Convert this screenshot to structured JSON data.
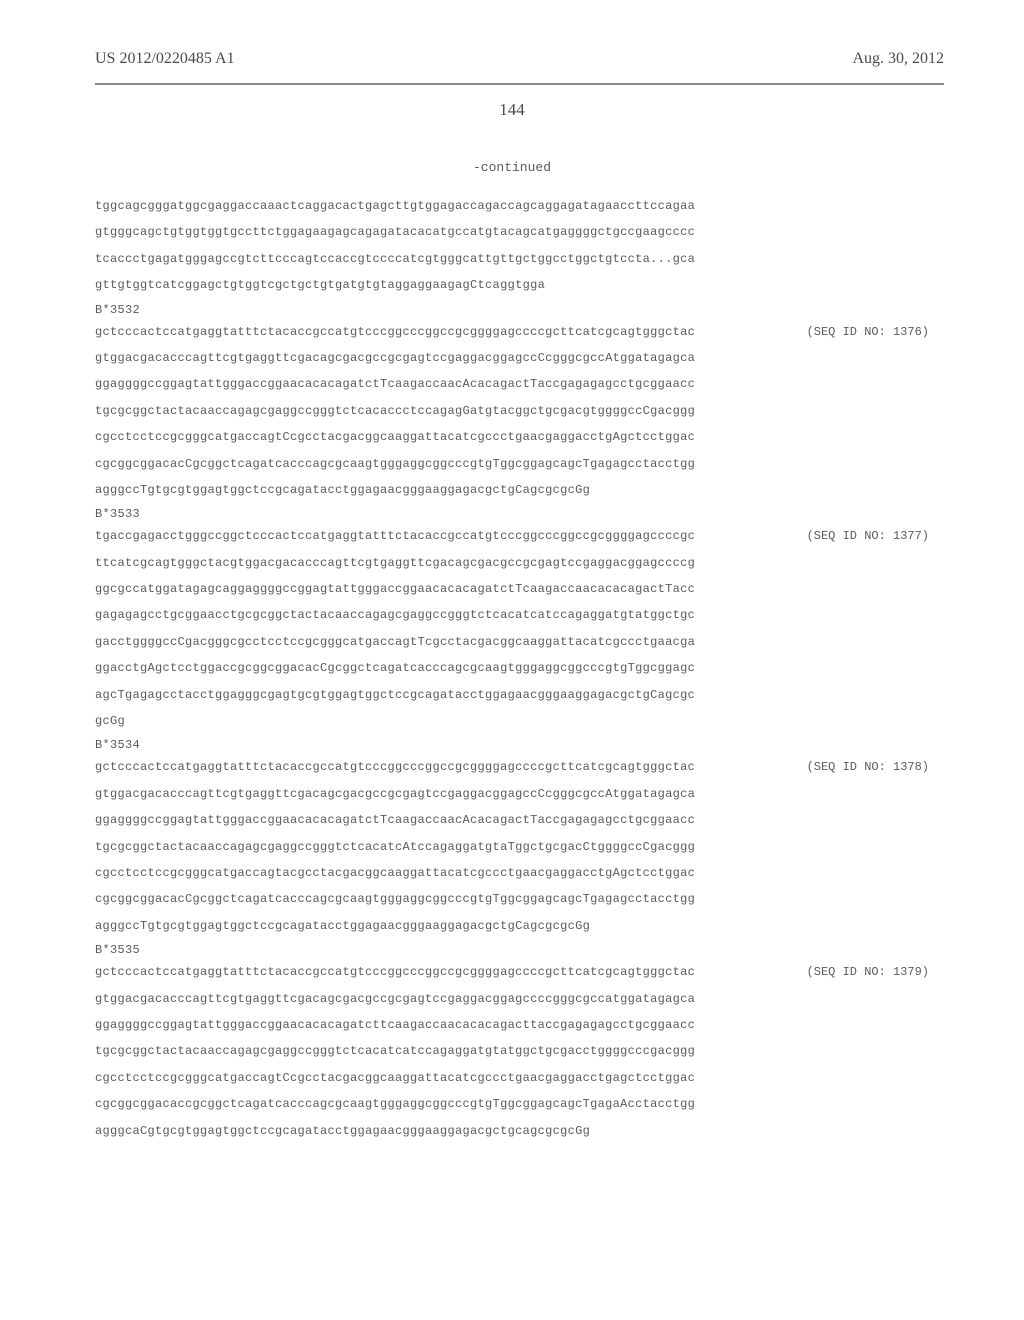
{
  "header": {
    "doc_number": "US 2012/0220485 A1",
    "date": "Aug. 30, 2012"
  },
  "page_number": "144",
  "continued_label": "-continued",
  "sequences": [
    {
      "lines": [
        "tggcagcgggatggcgaggaccaaactcaggacactgagcttgtggagaccagaccagcaggagatagaaccttccagaa",
        "gtgggcagctgtggtggtgccttctggagaagagcagagatacacatgccatgtacagcatgaggggctgccgaagcccc",
        "tcaccctgagatgggagccgtcttcccagtccaccgtccccatcgtgggcattgttgctggcctggctgtccta...gca",
        "gttgtggtcatcggagctgtggtcgctgctgtgatgtgtaggaggaagagCtcaggtgga"
      ]
    },
    {
      "allele": "B*3532",
      "seq_id": "(SEQ ID NO: 1376)",
      "lines": [
        "gctcccactccatgaggtatttctacaccgccatgtcccggcccggccgcggggagccccgcttcatcgcagtgggctac",
        "gtggacgacacccagttcgtgaggttcgacagcgacgccgcgagtccgaggacggagccCcgggcgccAtggatagagca",
        "ggaggggccggagtattgggaccggaacacacagatctTcaagaccaacAcacagactTaccgagagagcctgcggaacc",
        "tgcgcggctactacaaccagagcgaggccgggtctcacaccctccagagGatgtacggctgcgacgtggggccCgacggg",
        "cgcctcctccgcgggcatgaccagtCcgcctacgacggcaaggattacatcgccctgaacgaggacctgAgctcctggac",
        "cgcggcggacacCgcggctcagatcacccagcgcaagtgggaggcggcccgtgTggcggagcagcTgagagcctacctgg",
        "agggccTgtgcgtggagtggctccgcagatacctggagaacgggaaggagacgctgCagcgcgcGg"
      ]
    },
    {
      "allele": "B*3533",
      "seq_id": "(SEQ ID NO: 1377)",
      "lines": [
        "tgaccgagacctgggccggctcccactccatgaggtatttctacaccgccatgtcccggcccggccgcggggagccccgc",
        "ttcatcgcagtgggctacgtggacgacacccagttcgtgaggttcgacagcgacgccgcgagtccgaggacggagccccg",
        "ggcgccatggatagagcaggaggggccggagtattgggaccggaacacacagatctTcaagaccaacacacagactTacc",
        "gagagagcctgcggaacctgcgcggctactacaaccagagcgaggccgggtctcacatcatccagaggatgtatggctgc",
        "gacctggggccCgacgggcgcctcctccgcgggcatgaccagtTcgcctacgacggcaaggattacatcgccctgaacga",
        "ggacctgAgctcctggaccgcggcggacacCgcggctcagatcacccagcgcaagtgggaggcggcccgtgTggcggagc",
        "agcTgagagcctacctggagggcgagtgcgtggagtggctccgcagatacctggagaacgggaaggagacgctgCagcgc",
        "gcGg"
      ]
    },
    {
      "allele": "B*3534",
      "seq_id": "(SEQ ID NO: 1378)",
      "lines": [
        "gctcccactccatgaggtatttctacaccgccatgtcccggcccggccgcggggagccccgcttcatcgcagtgggctac",
        "gtggacgacacccagttcgtgaggttcgacagcgacgccgcgagtccgaggacggagccCcgggcgccAtggatagagca",
        "ggaggggccggagtattgggaccggaacacacagatctTcaagaccaacAcacagactTaccgagagagcctgcggaacc",
        "tgcgcggctactacaaccagagcgaggccgggtctcacatcAtccagaggatgtaTggctgcgacCtggggccCgacggg",
        "cgcctcctccgcgggcatgaccagtacgcctacgacggcaaggattacatcgccctgaacgaggacctgAgctcctggac",
        "cgcggcggacacCgcggctcagatcacccagcgcaagtgggaggcggcccgtgTggcggagcagcTgagagcctacctgg",
        "agggccTgtgcgtggagtggctccgcagatacctggagaacgggaaggagacgctgCagcgcgcGg"
      ]
    },
    {
      "allele": "B*3535",
      "seq_id": "(SEQ ID NO: 1379)",
      "lines": [
        "gctcccactccatgaggtatttctacaccgccatgtcccggcccggccgcggggagccccgcttcatcgcagtgggctac",
        "gtggacgacacccagttcgtgaggttcgacagcgacgccgcgagtccgaggacggagccccgggcgccatggatagagca",
        "ggaggggccggagtattgggaccggaacacacagatcttcaagaccaacacacagacttaccgagagagcctgcggaacc",
        "tgcgcggctactacaaccagagcgaggccgggtctcacatcatccagaggatgtatggctgcgacctggggcccgacggg",
        "cgcctcctccgcgggcatgaccagtCcgcctacgacggcaaggattacatcgccctgaacgaggacctgagctcctggac",
        "cgcggcggacaccgcggctcagatcacccagcgcaagtgggaggcggcccgtgTggcggagcagcTgagaAcctacctgg",
        "agggcaCgtgcgtggagtggctccgcagatacctggagaacgggaaggagacgctgcagcgcgcGg"
      ]
    }
  ],
  "styling": {
    "background_color": "#ffffff",
    "text_color": "#5a5a5a",
    "header_text_color": "#4a4a4a",
    "header_line_color": "#888888",
    "footer_gradient_color": "#e8e8e8",
    "body_font": "Times New Roman",
    "mono_font": "Courier New",
    "header_font_size": 16,
    "page_number_font_size": 17,
    "sequence_font_size": 12,
    "sequence_line_height": 2.2
  }
}
